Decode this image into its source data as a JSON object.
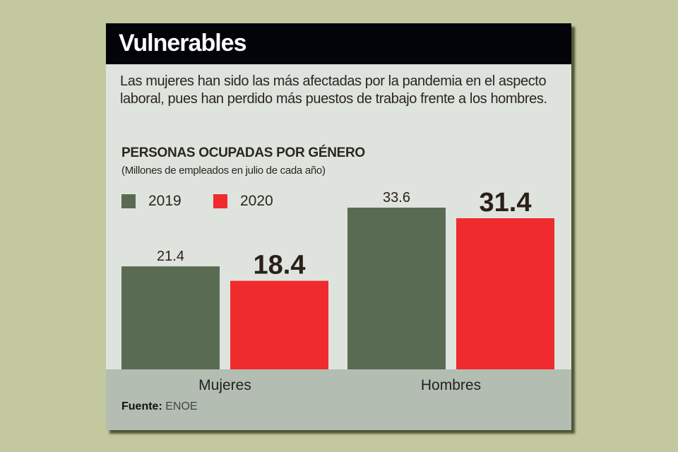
{
  "header": {
    "title": "Vulnerables"
  },
  "description": "Las mujeres han sido las más afectadas por la pandemia en el aspecto laboral, pues han perdido más puestos de trabajo frente a los hombres.",
  "source": {
    "label": "Fuente:",
    "value": "ENOE"
  },
  "colors": {
    "2019": "#5a6b54",
    "2020": "#ef2b2e"
  },
  "chart_data": {
    "type": "bar",
    "title": "PERSONAS OCUPADAS POR GÉNERO",
    "subtitle": "(Millones de empleados en julio de cada año)",
    "xlabel": "",
    "ylabel": "",
    "categories": [
      "Mujeres",
      "Hombres"
    ],
    "series": [
      {
        "name": "2019",
        "values": [
          21.4,
          33.6
        ],
        "labels": [
          "21.4",
          "33.6"
        ]
      },
      {
        "name": "2020",
        "values": [
          18.4,
          31.4
        ],
        "labels": [
          "18.4",
          "31.4"
        ]
      }
    ],
    "ylim": [
      0,
      33.6
    ],
    "grid": false,
    "legend": "top-left"
  }
}
